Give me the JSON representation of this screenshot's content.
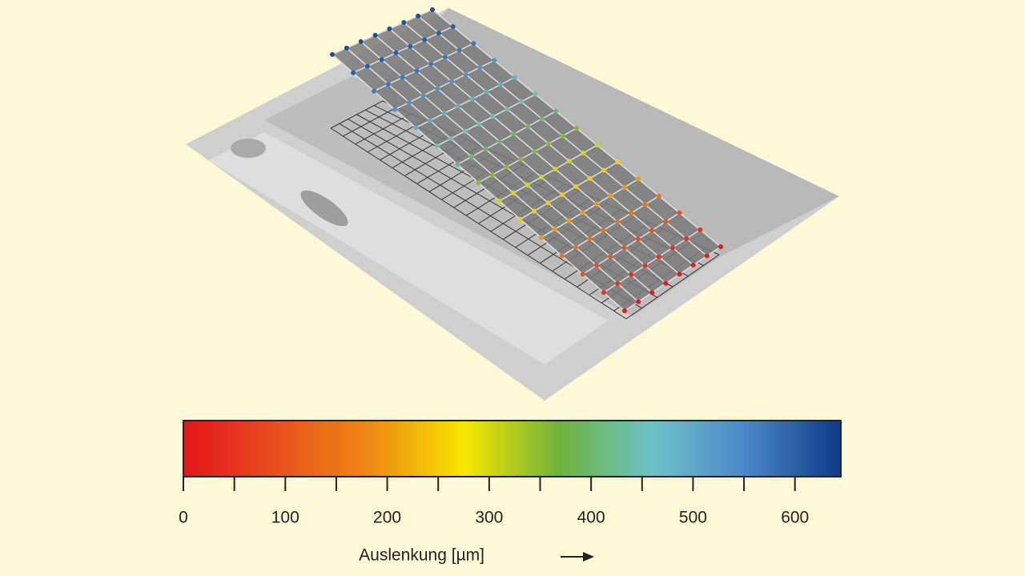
{
  "chart_data": {
    "type": "colormesh",
    "xlabel": "Auslenkung [µm]",
    "colorbar": {
      "lim": [
        0,
        645
      ],
      "ticks": [
        0,
        100,
        200,
        300,
        400,
        500,
        600
      ],
      "minor_ticks": [
        50,
        150,
        250,
        350,
        450,
        550
      ],
      "colors": [
        "#e3141c",
        "#e8501e",
        "#ef8a14",
        "#f7e600",
        "#6fb23a",
        "#6cc3c9",
        "#4a86c8",
        "#0f3a86"
      ]
    },
    "mesh": {
      "columns": 8,
      "row_values": [
        620,
        600,
        570,
        530,
        490,
        450,
        400,
        350,
        300,
        250,
        200,
        150,
        100,
        50,
        10
      ]
    }
  }
}
